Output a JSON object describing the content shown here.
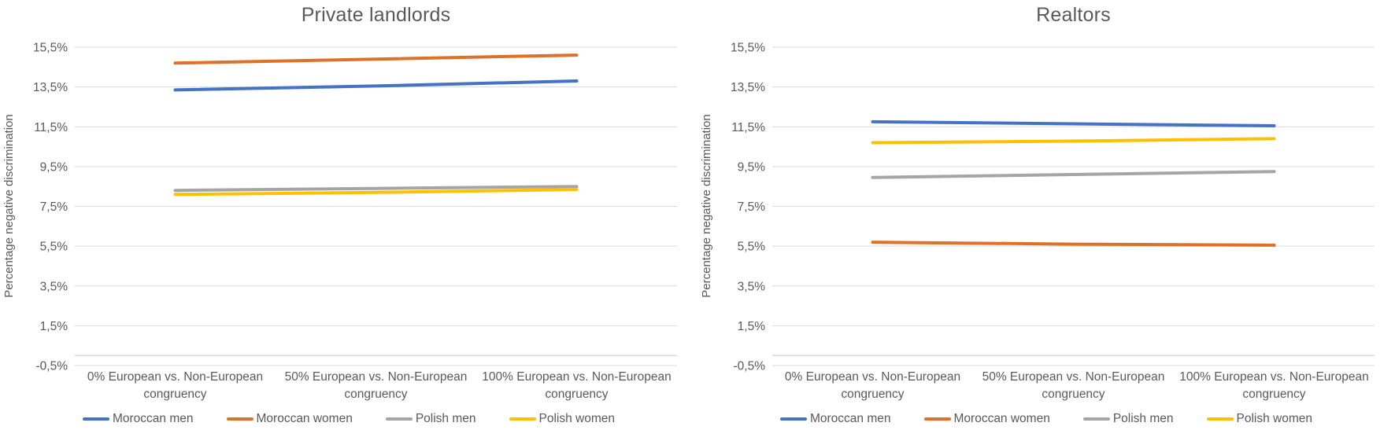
{
  "page": {
    "background": "#ffffff"
  },
  "colors": {
    "text": "#595959",
    "gridline": "#D9D9D9",
    "axis_line": "#C9C9C9",
    "series_blue": "#4472C4",
    "series_orange": "#DD7128",
    "series_gray": "#A5A5A5",
    "series_yellow": "#FFC000"
  },
  "chart_data": [
    {
      "type": "line",
      "title": "Private landlords",
      "ylabel": "Percentage negative discrimination",
      "xlabel": "",
      "categories": [
        "0% European vs. Non-European congruency",
        "50% European vs. Non-European congruency",
        "100% European vs. Non-European congruency"
      ],
      "ylim": [
        -0.5,
        15.5
      ],
      "yticks": [
        15.5,
        13.5,
        11.5,
        9.5,
        7.5,
        5.5,
        3.5,
        1.5,
        -0.5
      ],
      "ytick_labels": [
        "15,5%",
        "13,5%",
        "11,5%",
        "9,5%",
        "7,5%",
        "5,5%",
        "3,5%",
        "1,5%",
        "-0,5%"
      ],
      "grid": true,
      "legend_position": "bottom",
      "series": [
        {
          "name": "Moroccan men",
          "color": "#4472C4",
          "values": [
            13.35,
            13.55,
            13.8
          ]
        },
        {
          "name": "Moroccan women",
          "color": "#DD7128",
          "values": [
            14.7,
            14.9,
            15.1
          ]
        },
        {
          "name": "Polish men",
          "color": "#A5A5A5",
          "values": [
            8.3,
            8.4,
            8.5
          ]
        },
        {
          "name": "Polish women",
          "color": "#FFC000",
          "values": [
            8.1,
            8.2,
            8.35
          ]
        }
      ]
    },
    {
      "type": "line",
      "title": "Realtors",
      "ylabel": "Percentage negative discrimination",
      "xlabel": "",
      "categories": [
        "0% European vs. Non-European congruency",
        "50% European vs. Non-European congruency",
        "100% European vs. Non-European congruency"
      ],
      "ylim": [
        -0.5,
        15.5
      ],
      "yticks": [
        15.5,
        13.5,
        11.5,
        9.5,
        7.5,
        5.5,
        3.5,
        1.5,
        -0.5
      ],
      "ytick_labels": [
        "15,5%",
        "13,5%",
        "11,5%",
        "9,5%",
        "7,5%",
        "5,5%",
        "3,5%",
        "1,5%",
        "-0,5%"
      ],
      "grid": true,
      "legend_position": "bottom",
      "series": [
        {
          "name": "Moroccan men",
          "color": "#4472C4",
          "values": [
            11.75,
            11.65,
            11.55
          ]
        },
        {
          "name": "Moroccan women",
          "color": "#DD7128",
          "values": [
            5.7,
            5.6,
            5.55
          ]
        },
        {
          "name": "Polish men",
          "color": "#A5A5A5",
          "values": [
            8.95,
            9.1,
            9.25
          ]
        },
        {
          "name": "Polish women",
          "color": "#FFC000",
          "values": [
            10.7,
            10.78,
            10.9
          ]
        }
      ]
    }
  ]
}
